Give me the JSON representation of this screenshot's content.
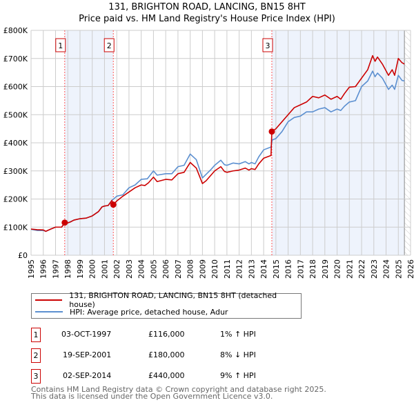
{
  "header": {
    "title": "131, BRIGHTON ROAD, LANCING, BN15 8HT",
    "subtitle": "Price paid vs. HM Land Registry's House Price Index (HPI)"
  },
  "chart_data": {
    "type": "line",
    "title": "131, BRIGHTON ROAD, LANCING, BN15 8HT",
    "subtitle": "Price paid vs. HM Land Registry's House Price Index (HPI)",
    "xlim": [
      1995,
      2026
    ],
    "ylim": [
      0,
      800000
    ],
    "grid": true,
    "x_ticks": [
      "1995",
      "1996",
      "1997",
      "1998",
      "1999",
      "2000",
      "2001",
      "2002",
      "2003",
      "2004",
      "2005",
      "2006",
      "2007",
      "2008",
      "2009",
      "2010",
      "2011",
      "2012",
      "2013",
      "2014",
      "2015",
      "2016",
      "2017",
      "2018",
      "2019",
      "2020",
      "2021",
      "2022",
      "2023",
      "2024",
      "2025",
      "2026"
    ],
    "y_ticks": [
      {
        "v": 0,
        "label": "£0"
      },
      {
        "v": 100000,
        "label": "£100K"
      },
      {
        "v": 200000,
        "label": "£200K"
      },
      {
        "v": 300000,
        "label": "£300K"
      },
      {
        "v": 400000,
        "label": "£400K"
      },
      {
        "v": 500000,
        "label": "£500K"
      },
      {
        "v": 600000,
        "label": "£600K"
      },
      {
        "v": 700000,
        "label": "£700K"
      },
      {
        "v": 800000,
        "label": "£800K"
      }
    ],
    "colors": {
      "property": "#cc0000",
      "hpi": "#5b8fd0",
      "shade": "#eef3fc",
      "marker_line": "#ff5555"
    },
    "shaded_ranges": [
      [
        1997.75,
        2001.72
      ],
      [
        2014.67,
        2025.5
      ]
    ],
    "forecast_hatch_from": 2025.5,
    "series": [
      {
        "name": "131, BRIGHTON ROAD, LANCING, BN15 8HT (detached house)",
        "key": "property",
        "points": [
          [
            1995,
            93
          ],
          [
            1995.5,
            91
          ],
          [
            1996,
            90
          ],
          [
            1996.2,
            85
          ],
          [
            1996.6,
            93
          ],
          [
            1997,
            100
          ],
          [
            1997.5,
            100
          ],
          [
            1997.75,
            116
          ],
          [
            1998,
            115
          ],
          [
            1998.2,
            118
          ],
          [
            1998.5,
            125
          ],
          [
            1999,
            130
          ],
          [
            1999.5,
            132
          ],
          [
            2000,
            140
          ],
          [
            2000.5,
            155
          ],
          [
            2000.8,
            172
          ],
          [
            2001,
            175
          ],
          [
            2001.3,
            177
          ],
          [
            2001.6,
            195
          ],
          [
            2001.72,
            180
          ],
          [
            2002,
            193
          ],
          [
            2002.5,
            210
          ],
          [
            2003,
            225
          ],
          [
            2003.5,
            240
          ],
          [
            2004,
            250
          ],
          [
            2004.3,
            248
          ],
          [
            2004.6,
            258
          ],
          [
            2005,
            278
          ],
          [
            2005.3,
            262
          ],
          [
            2006,
            270
          ],
          [
            2006.5,
            268
          ],
          [
            2007,
            290
          ],
          [
            2007.5,
            295
          ],
          [
            2008,
            330
          ],
          [
            2008.5,
            310
          ],
          [
            2009,
            255
          ],
          [
            2009.3,
            265
          ],
          [
            2009.7,
            285
          ],
          [
            2010,
            300
          ],
          [
            2010.5,
            315
          ],
          [
            2010.8,
            298
          ],
          [
            2011,
            295
          ],
          [
            2011.5,
            300
          ],
          [
            2012,
            303
          ],
          [
            2012.5,
            310
          ],
          [
            2012.8,
            303
          ],
          [
            2013,
            308
          ],
          [
            2013.3,
            305
          ],
          [
            2013.6,
            325
          ],
          [
            2014,
            345
          ],
          [
            2014.6,
            355
          ],
          [
            2014.67,
            440
          ],
          [
            2015,
            450
          ],
          [
            2015.5,
            475
          ],
          [
            2016,
            500
          ],
          [
            2016.5,
            525
          ],
          [
            2017,
            535
          ],
          [
            2017.5,
            545
          ],
          [
            2018,
            565
          ],
          [
            2018.5,
            560
          ],
          [
            2019,
            570
          ],
          [
            2019.5,
            555
          ],
          [
            2020,
            565
          ],
          [
            2020.3,
            555
          ],
          [
            2020.6,
            575
          ],
          [
            2021,
            598
          ],
          [
            2021.5,
            600
          ],
          [
            2022,
            630
          ],
          [
            2022.5,
            660
          ],
          [
            2022.9,
            710
          ],
          [
            2023.1,
            690
          ],
          [
            2023.3,
            705
          ],
          [
            2023.7,
            680
          ],
          [
            2024.2,
            640
          ],
          [
            2024.5,
            660
          ],
          [
            2024.7,
            640
          ],
          [
            2025,
            700
          ],
          [
            2025.3,
            685
          ],
          [
            2025.5,
            680
          ]
        ]
      },
      {
        "name": "HPI: Average price, detached house, Adur",
        "key": "hpi",
        "points": [
          [
            1995,
            92
          ],
          [
            1995.5,
            88
          ],
          [
            1996,
            88
          ],
          [
            1996.2,
            85
          ],
          [
            1996.6,
            93
          ],
          [
            1997,
            100
          ],
          [
            1997.5,
            100
          ],
          [
            1997.75,
            115
          ],
          [
            1998,
            115
          ],
          [
            1998.5,
            125
          ],
          [
            1999,
            130
          ],
          [
            1999.5,
            132
          ],
          [
            2000,
            140
          ],
          [
            2000.5,
            155
          ],
          [
            2000.8,
            172
          ],
          [
            2001,
            175
          ],
          [
            2001.3,
            177
          ],
          [
            2001.6,
            195
          ],
          [
            2002,
            210
          ],
          [
            2002.5,
            215
          ],
          [
            2003,
            240
          ],
          [
            2003.5,
            250
          ],
          [
            2004,
            270
          ],
          [
            2004.5,
            272
          ],
          [
            2005,
            300
          ],
          [
            2005.3,
            285
          ],
          [
            2006,
            290
          ],
          [
            2006.5,
            290
          ],
          [
            2007,
            315
          ],
          [
            2007.5,
            320
          ],
          [
            2008,
            360
          ],
          [
            2008.5,
            340
          ],
          [
            2009,
            275
          ],
          [
            2009.7,
            305
          ],
          [
            2010,
            320
          ],
          [
            2010.5,
            338
          ],
          [
            2010.8,
            322
          ],
          [
            2011,
            320
          ],
          [
            2011.5,
            328
          ],
          [
            2012,
            325
          ],
          [
            2012.5,
            333
          ],
          [
            2012.8,
            325
          ],
          [
            2013,
            330
          ],
          [
            2013.3,
            325
          ],
          [
            2013.6,
            350
          ],
          [
            2014,
            375
          ],
          [
            2014.6,
            385
          ],
          [
            2014.7,
            410
          ],
          [
            2015,
            415
          ],
          [
            2015.5,
            440
          ],
          [
            2016,
            475
          ],
          [
            2016.5,
            490
          ],
          [
            2017,
            495
          ],
          [
            2017.5,
            510
          ],
          [
            2018,
            510
          ],
          [
            2018.5,
            520
          ],
          [
            2019,
            525
          ],
          [
            2019.5,
            510
          ],
          [
            2020,
            520
          ],
          [
            2020.3,
            515
          ],
          [
            2020.6,
            530
          ],
          [
            2021,
            545
          ],
          [
            2021.5,
            550
          ],
          [
            2022,
            600
          ],
          [
            2022.5,
            620
          ],
          [
            2022.9,
            655
          ],
          [
            2023.1,
            635
          ],
          [
            2023.3,
            648
          ],
          [
            2023.7,
            630
          ],
          [
            2024.2,
            590
          ],
          [
            2024.5,
            605
          ],
          [
            2024.7,
            590
          ],
          [
            2025,
            640
          ],
          [
            2025.3,
            622
          ],
          [
            2025.5,
            620
          ]
        ]
      }
    ],
    "sales": [
      {
        "id": "1",
        "year": 1997.75,
        "price": 116000
      },
      {
        "id": "2",
        "year": 2001.72,
        "price": 180000
      },
      {
        "id": "3",
        "year": 2014.67,
        "price": 440000
      }
    ]
  },
  "legend": {
    "property": "131, BRIGHTON ROAD, LANCING, BN15 8HT (detached house)",
    "hpi": "HPI: Average price, detached house, Adur"
  },
  "transactions": [
    {
      "id": "1",
      "date": "03-OCT-1997",
      "price": "£116,000",
      "hpi": "1% ↑ HPI"
    },
    {
      "id": "2",
      "date": "19-SEP-2001",
      "price": "£180,000",
      "hpi": "8% ↓ HPI"
    },
    {
      "id": "3",
      "date": "02-SEP-2014",
      "price": "£440,000",
      "hpi": "9% ↑ HPI"
    }
  ],
  "footer": {
    "line1": "Contains HM Land Registry data © Crown copyright and database right 2025.",
    "line2": "This data is licensed under the Open Government Licence v3.0."
  }
}
